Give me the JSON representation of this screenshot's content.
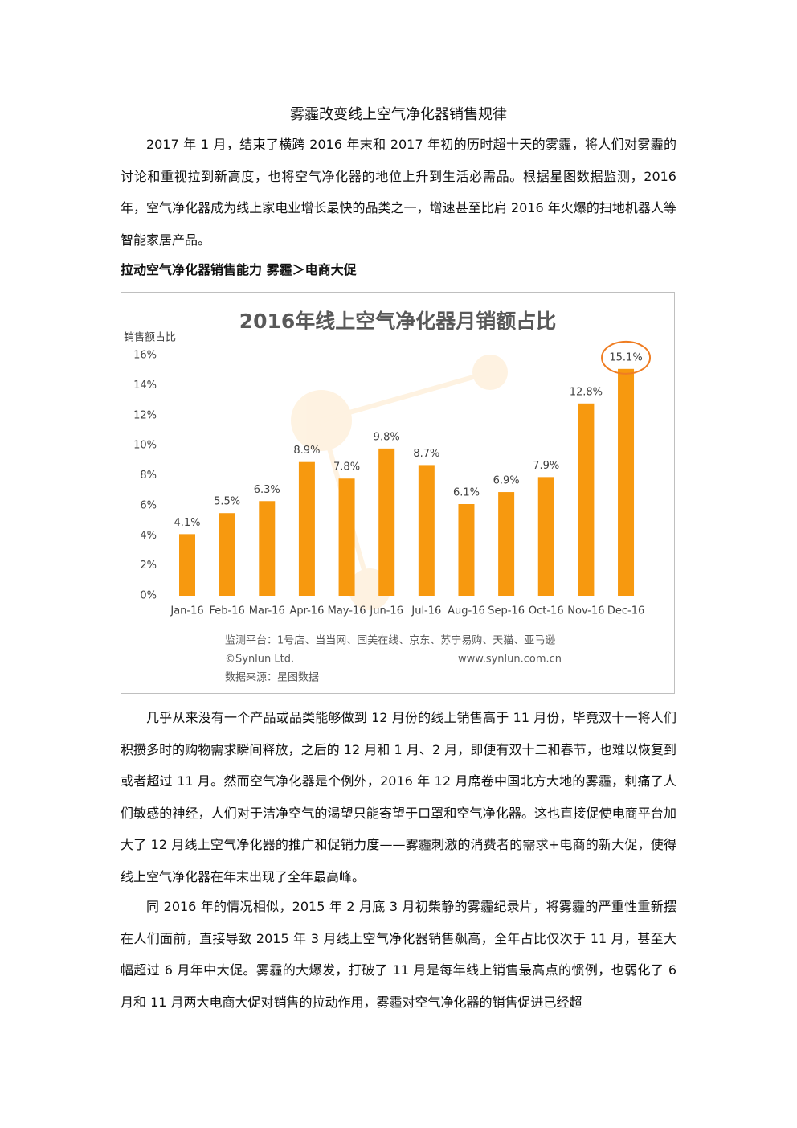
{
  "title": "雾霾改变线上空气净化器销售规律",
  "intro_paragraphs": [
    "2017 年 1 月，结束了横跨 2016 年末和 2017 年初的历时超十天的雾霾，将人们对雾霾的讨论和重视拉到新高度，也将空气净化器的地位上升到生活必需品。根据星图数据监测，2016 年，空气净化器成为线上家电业增长最快的品类之一，增速甚至比肩 2016 年火爆的扫地机器人等智能家居产品。"
  ],
  "heading": "拉动空气净化器销售能力 雾霾＞电商大促",
  "chart_data": {
    "type": "bar",
    "title": "2016年线上空气净化器月销额占比",
    "y_label": "销售额占比",
    "categories": [
      "Jan-16",
      "Feb-16",
      "Mar-16",
      "Apr-16",
      "May-16",
      "Jun-16",
      "Jul-16",
      "Aug-16",
      "Sep-16",
      "Oct-16",
      "Nov-16",
      "Dec-16"
    ],
    "values": [
      4.1,
      5.5,
      6.3,
      8.9,
      7.8,
      9.8,
      8.7,
      6.1,
      6.9,
      7.9,
      12.8,
      15.1
    ],
    "value_labels": [
      "4.1%",
      "5.5%",
      "6.3%",
      "8.9%",
      "7.8%",
      "9.8%",
      "8.7%",
      "6.1%",
      "6.9%",
      "7.9%",
      "12.8%",
      "15.1%"
    ],
    "color": "#f7990f",
    "ylim": [
      0,
      16
    ],
    "yticks": [
      {
        "value": 0,
        "label": "0%"
      },
      {
        "value": 2,
        "label": "2%"
      },
      {
        "value": 4,
        "label": "4%"
      },
      {
        "value": 6,
        "label": "6%"
      },
      {
        "value": 8,
        "label": "8%"
      },
      {
        "value": 10,
        "label": "10%"
      },
      {
        "value": 12,
        "label": "12%"
      },
      {
        "value": 14,
        "label": "14%"
      },
      {
        "value": 16,
        "label": "16%"
      }
    ],
    "grid": false,
    "notes": [
      "监测平台：1号店、当当网、国美在线、京东、苏宁易购、天猫、亚马逊",
      "©Synlun Ltd.",
      "www.synlun.com.cn",
      "数据来源：星图数据"
    ]
  },
  "body_paragraphs": [
    "几乎从来没有一个产品或品类能够做到 12 月份的线上销售高于 11 月份，毕竟双十一将人们积攒多时的购物需求瞬间释放，之后的 12 月和 1 月、2 月，即便有双十二和春节，也难以恢复到或者超过 11 月。然而空气净化器是个例外，2016 年 12 月席卷中国北方大地的雾霾，刺痛了人们敏感的神经，人们对于洁净空气的渴望只能寄望于口罩和空气净化器。这也直接促使电商平台加大了 12 月线上空气净化器的推广和促销力度——雾霾刺激的消费者的需求+电商的新大促，使得线上空气净化器在年末出现了全年最高峰。",
    "同 2016 年的情况相似，2015 年 2 月底 3 月初柴静的雾霾纪录片，将雾霾的严重性重新摆在人们面前，直接导致 2015 年 3 月线上空气净化器销售飙高，全年占比仅次于 11 月，甚至大幅超过 6 月年中大促。雾霾的大爆发，打破了 11 月是每年线上销售最高点的惯例，也弱化了 6 月和 11 月两大电商大促对销售的拉动作用，雾霾对空气净化器的销售促进已经超"
  ]
}
